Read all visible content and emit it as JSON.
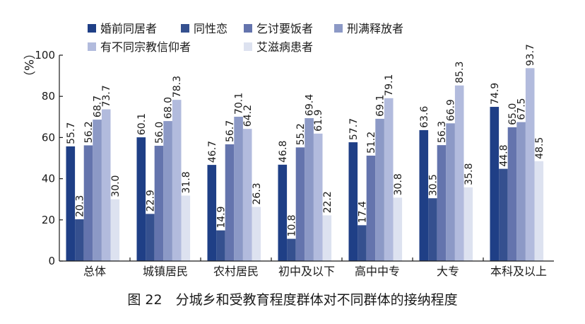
{
  "caption": "图 22　分城乡和受教育程度群体对不同群体的接纳程度",
  "chart_data": {
    "type": "bar",
    "unit_label": "（%）",
    "ylim": [
      0,
      100
    ],
    "yticks": [
      0,
      20,
      40,
      60,
      80,
      100
    ],
    "grid": false,
    "legend_position": "top",
    "categories": [
      "总体",
      "城镇居民",
      "农村居民",
      "初中及以下",
      "高中中专",
      "大专",
      "本科及以上"
    ],
    "series": [
      {
        "name": "婚前同居者",
        "color": "#1f3f86",
        "values": [
          55.7,
          60.1,
          46.7,
          46.8,
          57.7,
          63.6,
          74.9
        ]
      },
      {
        "name": "同性恋",
        "color": "#35508f",
        "values": [
          20.3,
          22.9,
          14.9,
          10.8,
          17.4,
          30.5,
          44.8
        ]
      },
      {
        "name": "乞讨要饭者",
        "color": "#6474ad",
        "values": [
          56.2,
          56.0,
          56.7,
          55.2,
          51.2,
          56.3,
          65.0
        ]
      },
      {
        "name": "刑满释放者",
        "color": "#8c99c6",
        "values": [
          68.7,
          68.0,
          70.1,
          69.4,
          69.1,
          66.9,
          67.5
        ]
      },
      {
        "name": "有不同宗教信仰者",
        "color": "#b2bbdd",
        "values": [
          73.7,
          78.3,
          64.2,
          61.9,
          79.1,
          85.3,
          93.7
        ]
      },
      {
        "name": "艾滋病患者",
        "color": "#dde2f0",
        "values": [
          30.0,
          31.8,
          26.3,
          22.2,
          30.8,
          35.8,
          48.5
        ]
      }
    ]
  }
}
